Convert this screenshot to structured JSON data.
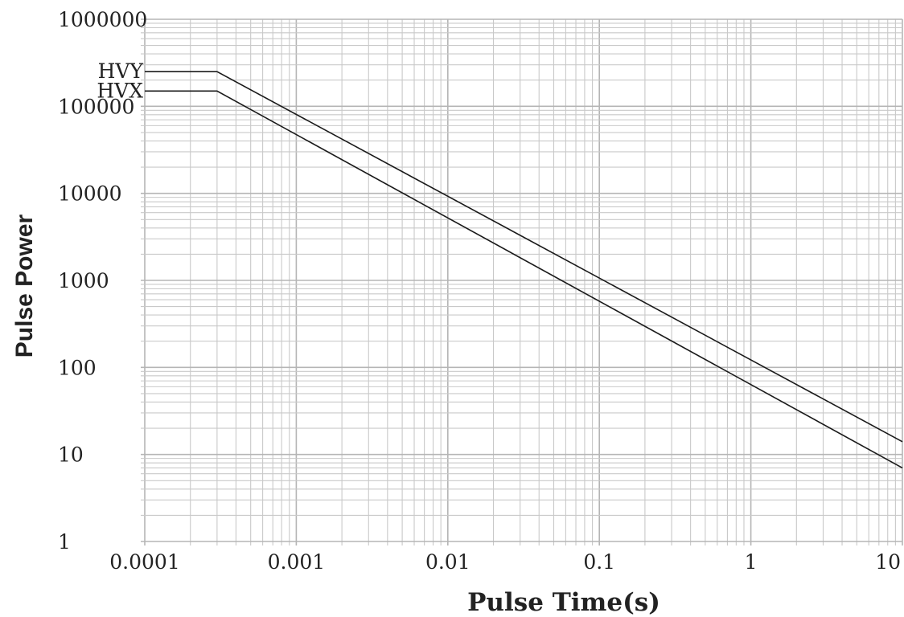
{
  "chart_data": {
    "type": "line",
    "title": "",
    "xlabel": "Pulse Time(s)",
    "ylabel": "Pulse Power",
    "x_scale": "log",
    "y_scale": "log",
    "xlim": [
      0.0001,
      10
    ],
    "ylim": [
      1,
      1000000
    ],
    "x_ticks": [
      "0.0001",
      "0.001",
      "0.01",
      "0.1",
      "1",
      "10"
    ],
    "y_ticks": [
      "1",
      "10",
      "100",
      "1000",
      "10000",
      "100000",
      "1000000"
    ],
    "grid": true,
    "legend": "inline-left",
    "series": [
      {
        "name": "HVY",
        "x": [
          0.0001,
          0.0003,
          10
        ],
        "y": [
          250000,
          250000,
          14
        ]
      },
      {
        "name": "HVX",
        "x": [
          0.0001,
          0.0003,
          10
        ],
        "y": [
          150000,
          150000,
          7
        ]
      }
    ]
  }
}
